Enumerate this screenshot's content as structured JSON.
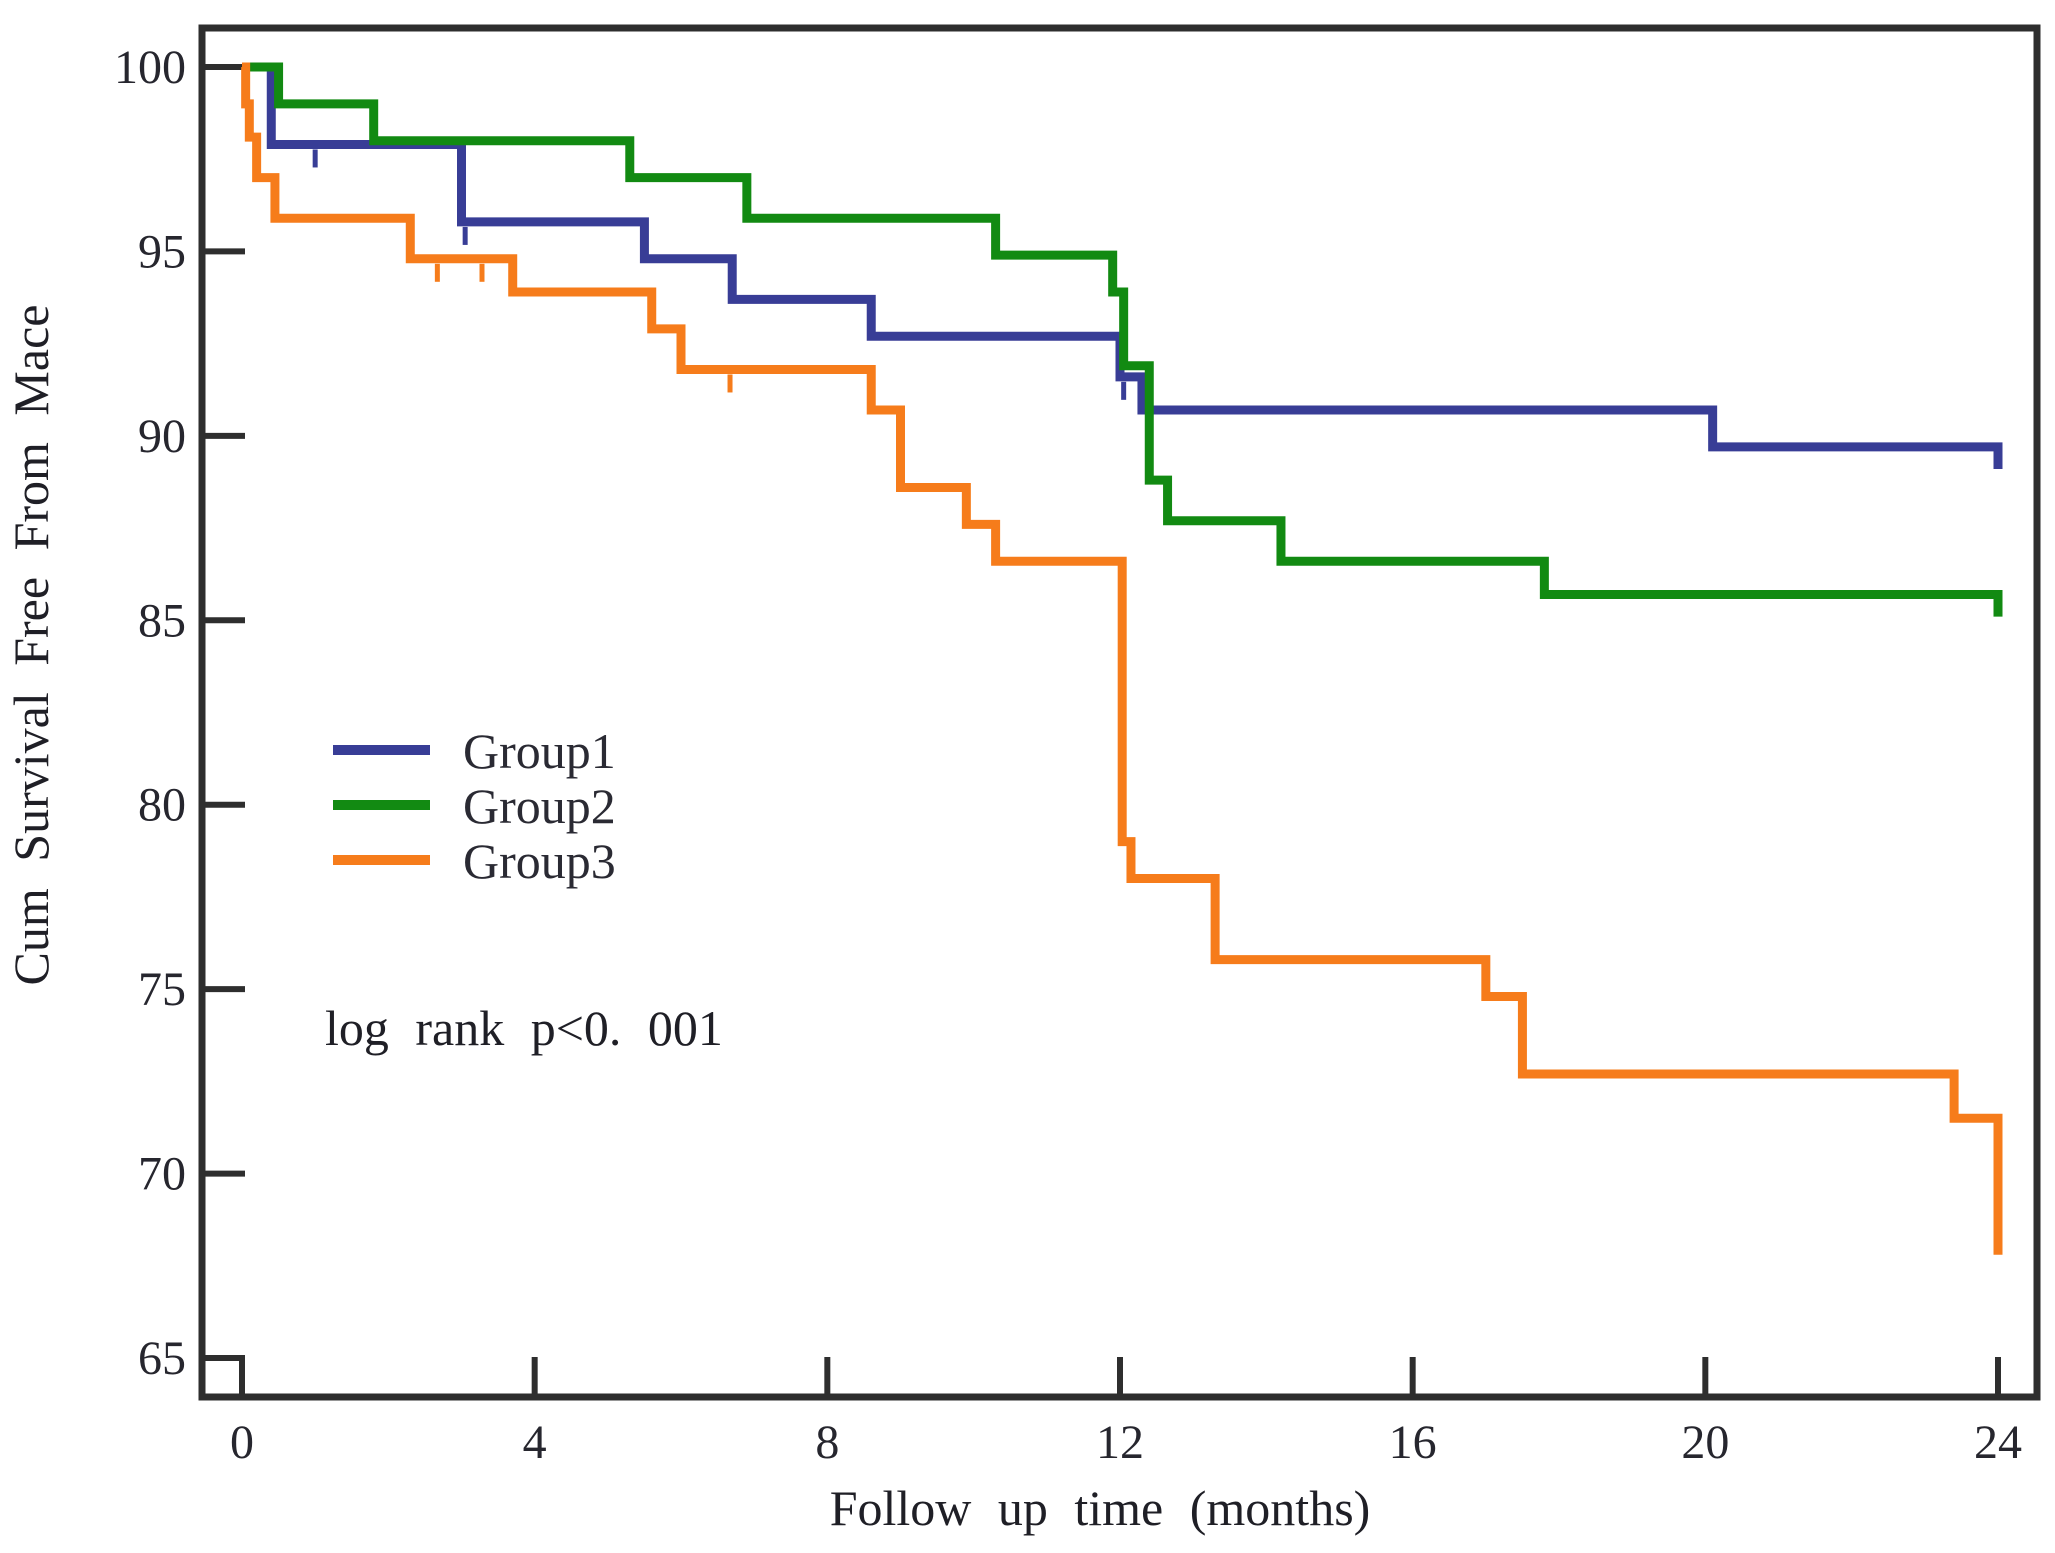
{
  "figure": {
    "background": "#ffffff"
  },
  "chart_data": {
    "type": "line",
    "subtype": "kaplan_meier_step",
    "title": "",
    "xlabel": "Follow up time (months)",
    "ylabel": "Cum Survival Free From Mace",
    "annotation": "log rank p<0. 001",
    "xlim": [
      0,
      24
    ],
    "ylim": [
      65,
      100
    ],
    "xticks": [
      0,
      4,
      8,
      12,
      16,
      20,
      24
    ],
    "yticks": [
      100,
      95,
      90,
      85,
      80,
      75,
      70,
      65
    ],
    "grid": false,
    "legend_position": "center-left",
    "axis_color": "#2e2e2e",
    "text_color": "#26262e",
    "series": [
      {
        "name": "Group1",
        "color": "#383d96",
        "steps": [
          [
            0,
            100
          ],
          [
            0.4,
            97.9
          ],
          [
            3,
            95.8
          ],
          [
            5.5,
            94.8
          ],
          [
            6.7,
            93.7
          ],
          [
            8.6,
            92.7
          ],
          [
            12,
            91.6
          ],
          [
            12.3,
            90.7
          ],
          [
            20.1,
            89.7
          ],
          [
            24,
            89.1
          ]
        ],
        "censors": [
          [
            1,
            97.9
          ],
          [
            3.05,
            95.8
          ],
          [
            12.05,
            91.6
          ]
        ]
      },
      {
        "name": "Group2",
        "color": "#128a12",
        "steps": [
          [
            0,
            100
          ],
          [
            0.5,
            99
          ],
          [
            1.8,
            98
          ],
          [
            5.3,
            97
          ],
          [
            6.9,
            95.9
          ],
          [
            10.3,
            94.9
          ],
          [
            11.9,
            93.9
          ],
          [
            12.05,
            91.9
          ],
          [
            12.4,
            88.8
          ],
          [
            12.65,
            87.7
          ],
          [
            14.2,
            86.6
          ],
          [
            17.8,
            85.7
          ],
          [
            24,
            85.1
          ]
        ],
        "censors": []
      },
      {
        "name": "Group3",
        "color": "#f67c1b",
        "steps": [
          [
            0,
            100
          ],
          [
            0.05,
            99
          ],
          [
            0.1,
            98.1
          ],
          [
            0.2,
            97
          ],
          [
            0.45,
            95.9
          ],
          [
            2.3,
            94.8
          ],
          [
            3.7,
            93.9
          ],
          [
            5.6,
            92.9
          ],
          [
            6,
            91.8
          ],
          [
            8.6,
            90.7
          ],
          [
            9,
            88.6
          ],
          [
            9.9,
            87.6
          ],
          [
            10.3,
            86.6
          ],
          [
            12.03,
            79
          ],
          [
            12.15,
            78
          ],
          [
            13.3,
            75.8
          ],
          [
            17,
            74.8
          ],
          [
            17.5,
            72.7
          ],
          [
            23.4,
            71.5
          ],
          [
            24,
            67.8
          ]
        ],
        "censors": [
          [
            2.67,
            94.8
          ],
          [
            3.28,
            94.8
          ],
          [
            6.67,
            91.8
          ]
        ]
      }
    ]
  }
}
